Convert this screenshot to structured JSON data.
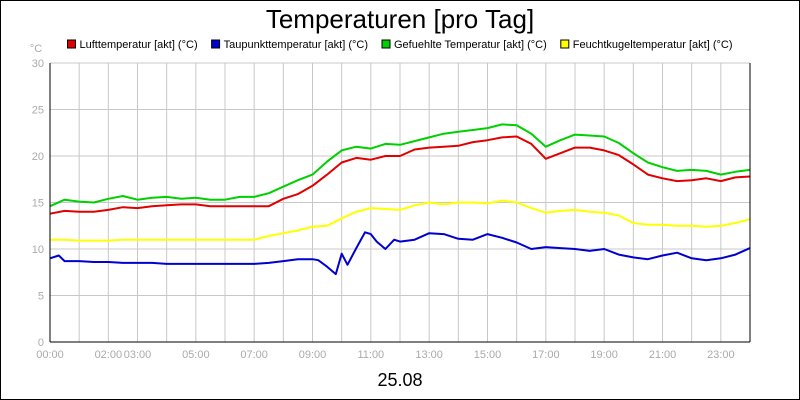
{
  "chart_data": {
    "type": "line",
    "title": "Temperaturen [pro Tag]",
    "ylabel": "°C",
    "xlabel": "25.08",
    "ylim": [
      0,
      30
    ],
    "yticks": [
      0,
      5,
      10,
      15,
      20,
      25,
      30
    ],
    "xlim": [
      0,
      24
    ],
    "xticks": [
      {
        "h": 0,
        "label": "00:00"
      },
      {
        "h": 2,
        "label": "02:00"
      },
      {
        "h": 3,
        "label": "03:00"
      },
      {
        "h": 5,
        "label": "05:00"
      },
      {
        "h": 7,
        "label": "07:00"
      },
      {
        "h": 9,
        "label": "09:00"
      },
      {
        "h": 11,
        "label": "11:00"
      },
      {
        "h": 13,
        "label": "13:00"
      },
      {
        "h": 15,
        "label": "15:00"
      },
      {
        "h": 17,
        "label": "17:00"
      },
      {
        "h": 19,
        "label": "19:00"
      },
      {
        "h": 21,
        "label": "21:00"
      },
      {
        "h": 23,
        "label": "23:00"
      }
    ],
    "grid": true,
    "series": [
      {
        "name": "Lufttemperatur [akt] (°C)",
        "color": "#e00000",
        "x": [
          0,
          0.5,
          1,
          1.5,
          2,
          2.5,
          3,
          3.5,
          4,
          4.5,
          5,
          5.5,
          6,
          6.5,
          7,
          7.5,
          8,
          8.5,
          9,
          9.5,
          10,
          10.5,
          11,
          11.5,
          12,
          12.5,
          13,
          13.5,
          14,
          14.5,
          15,
          15.5,
          16,
          16.5,
          17,
          17.5,
          18,
          18.5,
          19,
          19.5,
          20,
          20.5,
          21,
          21.5,
          22,
          22.5,
          23,
          23.5,
          24
        ],
        "values": [
          13.8,
          14.1,
          14.0,
          14.0,
          14.2,
          14.5,
          14.4,
          14.6,
          14.7,
          14.8,
          14.8,
          14.6,
          14.6,
          14.6,
          14.6,
          14.6,
          15.4,
          15.9,
          16.8,
          18.0,
          19.3,
          19.8,
          19.6,
          20.0,
          20.0,
          20.7,
          20.9,
          21.0,
          21.1,
          21.5,
          21.7,
          22.0,
          22.1,
          21.3,
          19.7,
          20.3,
          20.9,
          20.9,
          20.6,
          20.1,
          19.1,
          18.0,
          17.6,
          17.3,
          17.4,
          17.6,
          17.3,
          17.7,
          17.8
        ]
      },
      {
        "name": "Taupunkttemperatur [akt] (°C)",
        "color": "#0000d0",
        "x": [
          0,
          0.3,
          0.5,
          1,
          1.5,
          2,
          2.5,
          3,
          3.5,
          4,
          4.5,
          5,
          5.5,
          6,
          6.5,
          7,
          7.5,
          8,
          8.5,
          9,
          9.2,
          9.5,
          9.8,
          10,
          10.2,
          10.5,
          10.8,
          11,
          11.2,
          11.5,
          11.8,
          12,
          12.5,
          13,
          13.5,
          14,
          14.5,
          15,
          15.5,
          16,
          16.5,
          17,
          17.5,
          18,
          18.5,
          19,
          19.5,
          20,
          20.5,
          21,
          21.5,
          22,
          22.5,
          23,
          23.5,
          24
        ],
        "values": [
          9.0,
          9.3,
          8.7,
          8.7,
          8.6,
          8.6,
          8.5,
          8.5,
          8.5,
          8.4,
          8.4,
          8.4,
          8.4,
          8.4,
          8.4,
          8.4,
          8.5,
          8.7,
          8.9,
          8.9,
          8.8,
          8.1,
          7.3,
          9.5,
          8.3,
          10.1,
          11.8,
          11.6,
          10.8,
          10.0,
          11.0,
          10.8,
          11.0,
          11.7,
          11.6,
          11.1,
          11.0,
          11.6,
          11.2,
          10.7,
          10.0,
          10.2,
          10.1,
          10.0,
          9.8,
          10.0,
          9.4,
          9.1,
          8.9,
          9.3,
          9.6,
          9.0,
          8.8,
          9.0,
          9.4,
          10.1
        ]
      },
      {
        "name": "Gefuehlte Temperatur [akt] (°C)",
        "color": "#00d000",
        "x": [
          0,
          0.5,
          1,
          1.5,
          2,
          2.5,
          3,
          3.5,
          4,
          4.5,
          5,
          5.5,
          6,
          6.5,
          7,
          7.5,
          8,
          8.5,
          9,
          9.5,
          10,
          10.5,
          11,
          11.5,
          12,
          12.5,
          13,
          13.5,
          14,
          14.5,
          15,
          15.5,
          16,
          16.5,
          17,
          17.5,
          18,
          18.5,
          19,
          19.5,
          20,
          20.5,
          21,
          21.5,
          22,
          22.5,
          23,
          23.5,
          24
        ],
        "values": [
          14.6,
          15.3,
          15.1,
          15.0,
          15.4,
          15.7,
          15.3,
          15.5,
          15.6,
          15.4,
          15.5,
          15.3,
          15.3,
          15.6,
          15.6,
          16.0,
          16.7,
          17.4,
          18.0,
          19.4,
          20.6,
          21.0,
          20.8,
          21.3,
          21.2,
          21.6,
          22.0,
          22.4,
          22.6,
          22.8,
          23.0,
          23.4,
          23.3,
          22.4,
          21.0,
          21.7,
          22.3,
          22.2,
          22.1,
          21.4,
          20.3,
          19.3,
          18.8,
          18.4,
          18.5,
          18.4,
          18.0,
          18.3,
          18.5
        ]
      },
      {
        "name": "Feuchtkugeltemperatur [akt] (°C)",
        "color": "#ffff00",
        "x": [
          0,
          0.5,
          1,
          1.5,
          2,
          2.5,
          3,
          3.5,
          4,
          4.5,
          5,
          5.5,
          6,
          6.5,
          7,
          7.5,
          8,
          8.5,
          9,
          9.5,
          10,
          10.5,
          11,
          11.5,
          12,
          12.5,
          13,
          13.5,
          14,
          14.5,
          15,
          15.5,
          16,
          16.5,
          17,
          17.5,
          18,
          18.5,
          19,
          19.5,
          20,
          20.5,
          21,
          21.5,
          22,
          22.5,
          23,
          23.5,
          24
        ],
        "values": [
          11.0,
          11.0,
          10.9,
          10.9,
          10.9,
          11.0,
          11.0,
          11.0,
          11.0,
          11.0,
          11.0,
          11.0,
          11.0,
          11.0,
          11.0,
          11.4,
          11.7,
          12.0,
          12.4,
          12.5,
          13.3,
          14.0,
          14.4,
          14.3,
          14.2,
          14.7,
          15.0,
          14.8,
          15.0,
          15.0,
          14.9,
          15.2,
          15.0,
          14.4,
          13.9,
          14.1,
          14.2,
          14.0,
          13.9,
          13.6,
          12.8,
          12.6,
          12.6,
          12.5,
          12.5,
          12.4,
          12.5,
          12.8,
          13.2
        ]
      }
    ]
  }
}
